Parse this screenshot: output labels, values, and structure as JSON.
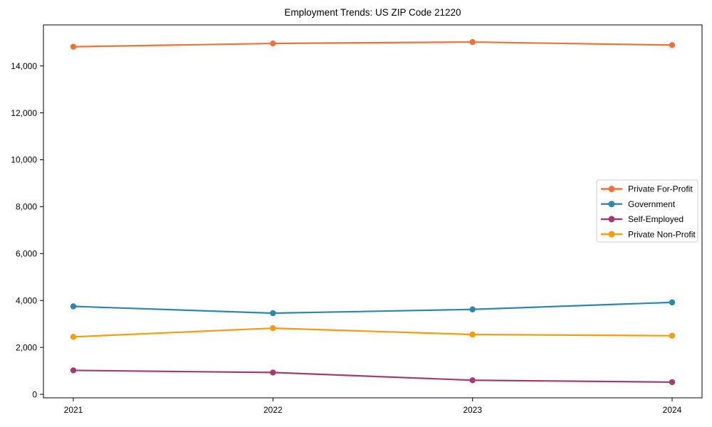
{
  "chart_data": {
    "type": "line",
    "title": "Employment Trends: US ZIP Code 21220",
    "x_labels": [
      "2021",
      "2022",
      "2023",
      "2024"
    ],
    "series": [
      {
        "name": "Private For-Profit",
        "color": "#e8743b",
        "values": [
          14820,
          14960,
          15020,
          14890
        ]
      },
      {
        "name": "Government",
        "color": "#2e86ab",
        "values": [
          3750,
          3460,
          3620,
          3920
        ]
      },
      {
        "name": "Self-Employed",
        "color": "#a23b72",
        "values": [
          1020,
          930,
          600,
          520
        ]
      },
      {
        "name": "Private Non-Profit",
        "color": "#f39c12",
        "values": [
          2450,
          2820,
          2550,
          2500
        ]
      }
    ],
    "yticks": [
      0,
      2000,
      4000,
      6000,
      8000,
      10000,
      12000,
      14000
    ],
    "ytick_labels": [
      "0",
      "2,000",
      "4,000",
      "6,000",
      "8,000",
      "10,000",
      "12,000",
      "14,000"
    ],
    "ylim": [
      -150,
      15750
    ],
    "grid": false,
    "legend_position": "center right",
    "xlabel": "",
    "ylabel": "",
    "axis_color": "#000000",
    "legend_border_color": "#cccccc",
    "legend_background": "#ffffff"
  }
}
